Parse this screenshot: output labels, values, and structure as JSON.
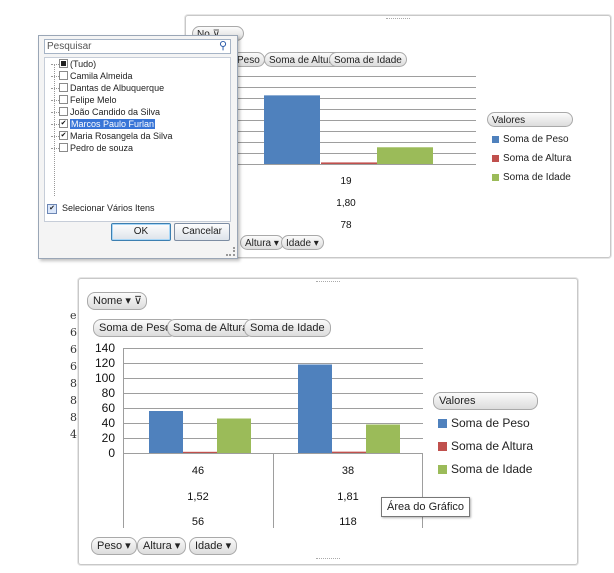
{
  "top_chart": {
    "field_button": {
      "label": "No",
      "filter_icon": "filter-icon"
    },
    "value_buttons": [
      "Peso",
      "Soma de Altura",
      "Soma de Idade"
    ],
    "bottom_buttons": [
      "Altura ▾",
      "Idade ▾"
    ],
    "legend_title": "Valores",
    "legend": [
      "Soma de Peso",
      "Soma de Altura",
      "Soma de Idade"
    ],
    "table_values": [
      "19",
      "1,80",
      "78"
    ]
  },
  "filter_dialog": {
    "search_placeholder": "Pesquisar",
    "items": [
      {
        "label": "(Tudo)",
        "state": "partial"
      },
      {
        "label": "Camila Almeida",
        "state": "unchecked"
      },
      {
        "label": "Dantas de Albuquerque",
        "state": "unchecked"
      },
      {
        "label": "Felipe Melo",
        "state": "unchecked"
      },
      {
        "label": "João Candido da Silva",
        "state": "unchecked"
      },
      {
        "label": "Marcos Paulo Furlan",
        "state": "checked",
        "selected": true
      },
      {
        "label": "Maria Rosangela da Silva",
        "state": "checked"
      },
      {
        "label": "Pedro de souza",
        "state": "unchecked"
      }
    ],
    "select_multiple_label": "Selecionar Vários Itens",
    "ok_label": "OK",
    "cancel_label": "Cancelar"
  },
  "bottom_chart": {
    "field_button": {
      "label": "Nome ▾",
      "filter_icon": "filter-icon"
    },
    "value_buttons": [
      "Soma de Peso",
      "Soma de Altura",
      "Soma de Idade"
    ],
    "bottom_buttons": [
      "Peso ▾",
      "Altura ▾",
      "Idade ▾"
    ],
    "legend_title": "Valores",
    "legend": [
      "Soma de Peso",
      "Soma de Altura",
      "Soma de Idade"
    ],
    "tooltip": "Área do Gráfico",
    "table": {
      "col1": [
        "46",
        "1,52",
        "56"
      ],
      "col2": [
        "38",
        "1,81",
        "118"
      ]
    },
    "row_header_fragments": [
      "e",
      "6",
      "6",
      "6",
      "8",
      "8",
      "8",
      "4"
    ]
  },
  "colors": {
    "peso": "#4f81bd",
    "altura": "#c0504d",
    "idade": "#9bbb59"
  },
  "chart_data": [
    {
      "type": "bar",
      "categories": [
        ""
      ],
      "series": [
        {
          "name": "Soma de Peso",
          "values": [
            78
          ]
        },
        {
          "name": "Soma de Altura",
          "values": [
            1.8
          ]
        },
        {
          "name": "Soma de Idade",
          "values": [
            19
          ]
        }
      ],
      "ylim": [
        0,
        100
      ],
      "grid": true,
      "legend_position": "right"
    },
    {
      "type": "bar",
      "categories": [
        "",
        ""
      ],
      "series": [
        {
          "name": "Soma de Peso",
          "values": [
            56,
            118
          ]
        },
        {
          "name": "Soma de Altura",
          "values": [
            1.52,
            1.81
          ]
        },
        {
          "name": "Soma de Idade",
          "values": [
            46,
            38
          ]
        }
      ],
      "yticks": [
        "0",
        "20",
        "40",
        "60",
        "80",
        "100",
        "120",
        "140"
      ],
      "ylim": [
        0,
        140
      ],
      "grid": true,
      "legend_position": "right"
    }
  ]
}
